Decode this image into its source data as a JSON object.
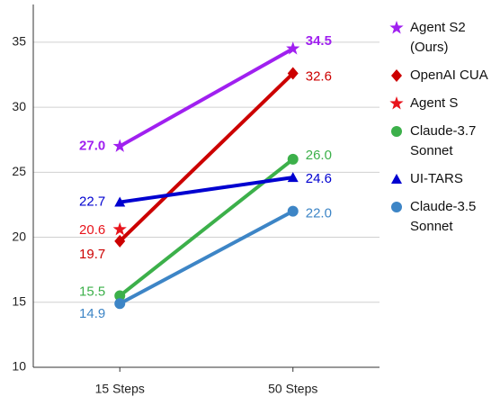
{
  "chart_data": {
    "type": "line",
    "categories": [
      "15 Steps",
      "50 Steps"
    ],
    "ylim": [
      10,
      37.9
    ],
    "yticks": [
      10,
      15,
      20,
      25,
      30,
      35
    ],
    "grid": true,
    "series": [
      {
        "name": "Agent S2 (Ours)",
        "color": "#a020f0",
        "marker": "star",
        "bold_labels": true,
        "values": [
          27.0,
          34.5
        ],
        "value_labels": [
          "27.0",
          "34.5"
        ]
      },
      {
        "name": "OpenAI CUA",
        "color": "#cc0000",
        "marker": "diamond",
        "values": [
          19.7,
          32.6
        ],
        "value_labels": [
          "19.7",
          "32.6"
        ]
      },
      {
        "name": "Agent S",
        "color": "#e8141c",
        "marker": "star",
        "values": [
          20.6,
          null
        ],
        "value_labels": [
          "20.6",
          null
        ]
      },
      {
        "name": "Claude-3.7 Sonnet",
        "color": "#3cb04a",
        "marker": "circle",
        "values": [
          15.5,
          26.0
        ],
        "value_labels": [
          "15.5",
          "26.0"
        ]
      },
      {
        "name": "UI-TARS",
        "color": "#0000d0",
        "marker": "triangle",
        "values": [
          22.7,
          24.6
        ],
        "value_labels": [
          "22.7",
          "24.6"
        ]
      },
      {
        "name": "Claude-3.5 Sonnet",
        "color": "#3d85c6",
        "marker": "circle",
        "values": [
          14.9,
          22.0
        ],
        "value_labels": [
          "14.9",
          "22.0"
        ]
      }
    ]
  }
}
